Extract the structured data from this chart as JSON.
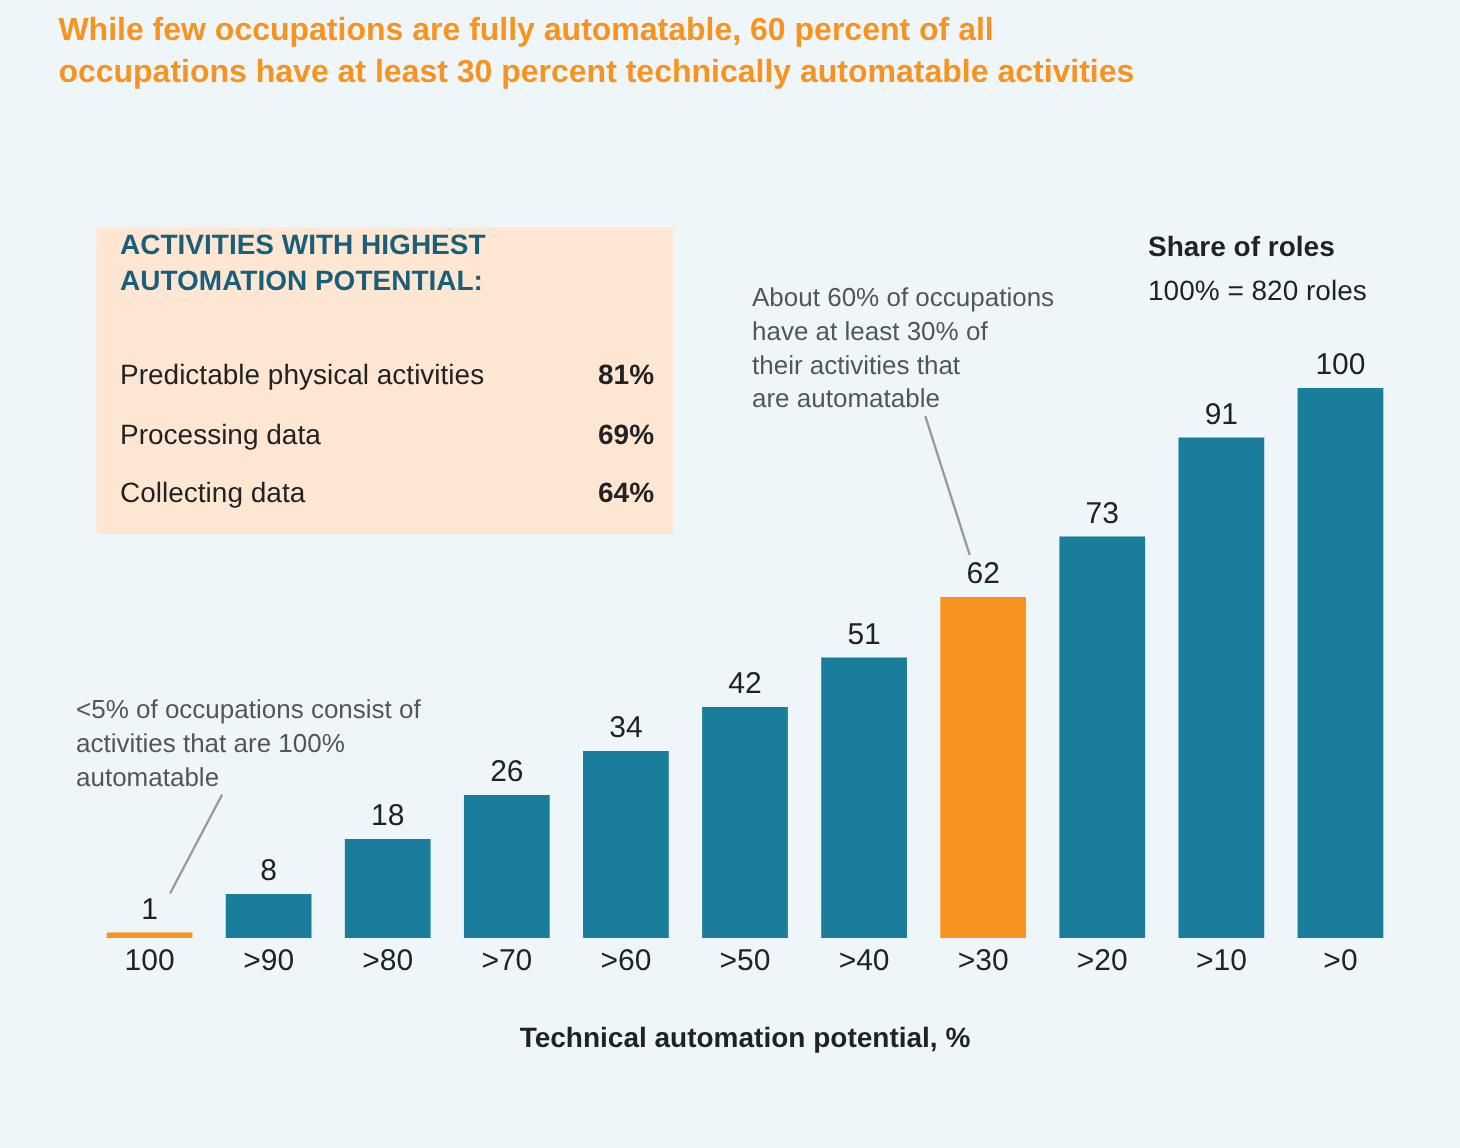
{
  "chart_data": {
    "type": "bar",
    "title": "While few occupations are fully automatable, 60 percent of all occupations have at least 30 percent technically automatable activities",
    "xlabel": "Technical automation potential, %",
    "categories": [
      "100",
      ">90",
      ">80",
      ">70",
      ">60",
      ">50",
      ">40",
      ">30",
      ">20",
      ">10",
      ">0"
    ],
    "values": [
      1,
      8,
      18,
      26,
      34,
      42,
      51,
      62,
      73,
      91,
      100
    ],
    "colors": [
      "#f7931e",
      "#1a7d9b",
      "#1a7d9b",
      "#1a7d9b",
      "#1a7d9b",
      "#1a7d9b",
      "#1a7d9b",
      "#f7931e",
      "#1a7d9b",
      "#1a7d9b",
      "#1a7d9b"
    ],
    "data_labels": true,
    "annotations": [
      "ACTIVITIES WITH HIGHEST AUTOMATION POTENTIAL:",
      "Predictable physical activities",
      "81%",
      "Processing data",
      "69%",
      "Collecting data",
      "64%",
      "Share of roles",
      "100% = 820 roles",
      {
        "text": "<5% of occupations consist of activities that are 100% automatable",
        "x": "100",
        "y": 1
      },
      {
        "text": "About 60% of occupations have at least 30% of their activities that are automatable",
        "x": ">30",
        "y": 62
      }
    ]
  }
}
